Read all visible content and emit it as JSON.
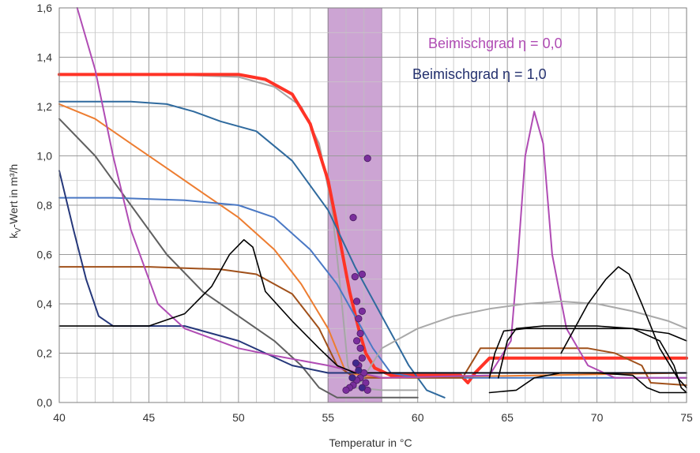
{
  "chart_data": {
    "type": "line",
    "xlabel": "Temperatur in °C",
    "ylabel_parts": [
      "k",
      "V",
      "-Wert  in  m³/h"
    ],
    "xlim": [
      40,
      75
    ],
    "ylim": [
      0,
      1.6
    ],
    "x_ticks": [
      "40",
      "45",
      "50",
      "55",
      "60",
      "65",
      "70",
      "75"
    ],
    "y_ticks": [
      "0,0",
      "0,2",
      "0,4",
      "0,6",
      "0,8",
      "1,0",
      "1,2",
      "1,4",
      "1,6"
    ],
    "grid": true,
    "band": {
      "x": [
        55,
        58
      ],
      "color": "#a25aaf"
    },
    "legend": [
      {
        "label": "Beimischgrad η = 0,0",
        "color": "#b04cb4"
      },
      {
        "label": "Beimischgrad η = 1,0",
        "color": "#23306e"
      }
    ],
    "series": [
      {
        "color": "#a6a6a6",
        "width": 2,
        "points": [
          [
            40,
            1.33
          ],
          [
            46,
            1.33
          ],
          [
            50,
            1.32
          ],
          [
            52,
            1.28
          ],
          [
            53.5,
            1.2
          ],
          [
            54.5,
            1.05
          ],
          [
            55.2,
            0.8
          ],
          [
            55.7,
            0.45
          ],
          [
            56.1,
            0.15
          ],
          [
            56.5,
            0.06
          ],
          [
            58,
            0.05
          ],
          [
            60,
            0.05
          ]
        ]
      },
      {
        "color": "#ff3326",
        "width": 4,
        "points": [
          [
            40,
            1.33
          ],
          [
            50,
            1.33
          ],
          [
            51.5,
            1.31
          ],
          [
            53,
            1.25
          ],
          [
            54,
            1.13
          ],
          [
            55,
            0.9
          ],
          [
            55.6,
            0.68
          ],
          [
            56.2,
            0.45
          ],
          [
            56.7,
            0.3
          ],
          [
            57.1,
            0.2
          ],
          [
            57.6,
            0.14
          ],
          [
            58.5,
            0.11
          ],
          [
            62.4,
            0.11
          ],
          [
            62.8,
            0.08
          ],
          [
            63.2,
            0.12
          ],
          [
            64,
            0.18
          ],
          [
            75,
            0.18
          ]
        ]
      },
      {
        "color": "#2f6a9e",
        "width": 2,
        "points": [
          [
            40,
            1.22
          ],
          [
            44,
            1.22
          ],
          [
            46,
            1.21
          ],
          [
            47.5,
            1.18
          ],
          [
            49,
            1.14
          ],
          [
            51,
            1.1
          ],
          [
            53,
            0.98
          ],
          [
            55,
            0.78
          ],
          [
            56.5,
            0.55
          ],
          [
            58,
            0.35
          ],
          [
            59.5,
            0.15
          ],
          [
            60.5,
            0.05
          ],
          [
            61.5,
            0.02
          ]
        ]
      },
      {
        "color": "#ed7d31",
        "width": 2,
        "points": [
          [
            40,
            1.21
          ],
          [
            42,
            1.15
          ],
          [
            44,
            1.05
          ],
          [
            46,
            0.95
          ],
          [
            48,
            0.85
          ],
          [
            50,
            0.75
          ],
          [
            52,
            0.62
          ],
          [
            53.5,
            0.48
          ],
          [
            55,
            0.3
          ],
          [
            56,
            0.12
          ],
          [
            58,
            0.1
          ],
          [
            75,
            0.12
          ]
        ]
      },
      {
        "color": "#606060",
        "width": 2,
        "points": [
          [
            40,
            1.15
          ],
          [
            42,
            1.0
          ],
          [
            44,
            0.8
          ],
          [
            46,
            0.6
          ],
          [
            48,
            0.45
          ],
          [
            50,
            0.35
          ],
          [
            52,
            0.25
          ],
          [
            53.5,
            0.15
          ],
          [
            54.5,
            0.06
          ],
          [
            55.5,
            0.02
          ],
          [
            60,
            0.02
          ]
        ]
      },
      {
        "color": "#4a78c4",
        "width": 2,
        "points": [
          [
            40,
            0.83
          ],
          [
            43,
            0.83
          ],
          [
            47,
            0.82
          ],
          [
            50,
            0.8
          ],
          [
            52,
            0.75
          ],
          [
            54,
            0.62
          ],
          [
            55.5,
            0.48
          ],
          [
            56.5,
            0.35
          ],
          [
            57.5,
            0.22
          ],
          [
            58.5,
            0.12
          ],
          [
            60,
            0.1
          ],
          [
            75,
            0.1
          ]
        ]
      },
      {
        "color": "#a0501a",
        "width": 2,
        "points": [
          [
            40,
            0.55
          ],
          [
            45,
            0.55
          ],
          [
            49,
            0.54
          ],
          [
            51,
            0.52
          ],
          [
            53,
            0.44
          ],
          [
            54.5,
            0.3
          ],
          [
            55.5,
            0.15
          ],
          [
            56.5,
            0.1
          ],
          [
            62.5,
            0.1
          ],
          [
            63.5,
            0.22
          ],
          [
            69.5,
            0.22
          ],
          [
            71,
            0.2
          ],
          [
            72.5,
            0.15
          ],
          [
            73,
            0.08
          ],
          [
            75,
            0.07
          ]
        ]
      },
      {
        "color": "#25377a",
        "width": 2,
        "points": [
          [
            40,
            0.94
          ],
          [
            40.8,
            0.7
          ],
          [
            41.5,
            0.5
          ],
          [
            42.2,
            0.35
          ],
          [
            43,
            0.31
          ],
          [
            47,
            0.31
          ],
          [
            50,
            0.25
          ],
          [
            53,
            0.15
          ],
          [
            55,
            0.12
          ],
          [
            75,
            0.12
          ]
        ]
      },
      {
        "color": "#b04cb4",
        "width": 2,
        "points": [
          [
            41,
            1.6
          ],
          [
            42,
            1.35
          ],
          [
            43,
            1.0
          ],
          [
            44,
            0.7
          ],
          [
            45.5,
            0.4
          ],
          [
            47,
            0.3
          ],
          [
            50,
            0.22
          ],
          [
            52,
            0.19
          ],
          [
            55,
            0.15
          ],
          [
            58,
            0.1
          ],
          [
            64,
            0.11
          ],
          [
            65.2,
            0.25
          ],
          [
            65.6,
            0.6
          ],
          [
            66,
            1.0
          ],
          [
            66.5,
            1.18
          ],
          [
            67,
            1.05
          ],
          [
            67.5,
            0.6
          ],
          [
            68.3,
            0.3
          ],
          [
            69.5,
            0.15
          ],
          [
            71,
            0.1
          ],
          [
            75,
            0.1
          ]
        ]
      },
      {
        "color": "#a9a9a9",
        "width": 2,
        "points": [
          [
            56.8,
            0.08
          ],
          [
            58,
            0.22
          ],
          [
            60,
            0.3
          ],
          [
            62,
            0.35
          ],
          [
            64,
            0.38
          ],
          [
            66,
            0.4
          ],
          [
            68,
            0.41
          ],
          [
            70,
            0.4
          ],
          [
            72,
            0.37
          ],
          [
            74,
            0.33
          ],
          [
            75,
            0.3
          ]
        ]
      },
      {
        "color": "#000000",
        "width": 1.6,
        "points": [
          [
            40,
            0.31
          ],
          [
            45,
            0.31
          ],
          [
            47,
            0.36
          ],
          [
            48.5,
            0.47
          ],
          [
            49.5,
            0.6
          ],
          [
            50.3,
            0.66
          ],
          [
            50.8,
            0.63
          ],
          [
            51.5,
            0.45
          ],
          [
            53,
            0.33
          ],
          [
            54.5,
            0.22
          ],
          [
            55.5,
            0.15
          ],
          [
            56.5,
            0.12
          ],
          [
            75,
            0.12
          ]
        ]
      },
      {
        "color": "#000000",
        "width": 1.6,
        "points": [
          [
            64.5,
            0.1
          ],
          [
            65,
            0.25
          ],
          [
            65.5,
            0.3
          ],
          [
            67,
            0.31
          ],
          [
            70,
            0.31
          ],
          [
            72,
            0.3
          ],
          [
            73.5,
            0.25
          ],
          [
            74.3,
            0.15
          ],
          [
            74.7,
            0.06
          ],
          [
            75,
            0.04
          ]
        ]
      },
      {
        "color": "#000000",
        "width": 1.6,
        "points": [
          [
            64,
            0.1
          ],
          [
            64.3,
            0.2
          ],
          [
            64.8,
            0.29
          ],
          [
            66,
            0.3
          ],
          [
            72,
            0.3
          ],
          [
            74,
            0.28
          ],
          [
            75,
            0.25
          ]
        ]
      },
      {
        "color": "#000000",
        "width": 1.6,
        "points": [
          [
            68,
            0.2
          ],
          [
            69.5,
            0.4
          ],
          [
            70.5,
            0.5
          ],
          [
            71.2,
            0.55
          ],
          [
            71.8,
            0.52
          ],
          [
            72.5,
            0.4
          ],
          [
            73.5,
            0.22
          ],
          [
            74.5,
            0.1
          ],
          [
            75,
            0.06
          ]
        ]
      },
      {
        "color": "#000000",
        "width": 1.6,
        "points": [
          [
            64,
            0.04
          ],
          [
            65.5,
            0.05
          ],
          [
            66.5,
            0.1
          ],
          [
            68,
            0.12
          ],
          [
            70,
            0.12
          ],
          [
            72,
            0.11
          ],
          [
            72.8,
            0.06
          ],
          [
            73.5,
            0.04
          ],
          [
            75,
            0.04
          ]
        ]
      }
    ],
    "markers": [
      {
        "color": "#7a2e9c",
        "points": [
          [
            57.2,
            0.99
          ],
          [
            56.4,
            0.75
          ],
          [
            56.9,
            0.52
          ],
          [
            56.5,
            0.51
          ],
          [
            56.6,
            0.41
          ],
          [
            56.9,
            0.37
          ],
          [
            56.7,
            0.34
          ],
          [
            56.8,
            0.28
          ],
          [
            56.6,
            0.25
          ],
          [
            56.8,
            0.22
          ],
          [
            56.9,
            0.18
          ],
          [
            56.7,
            0.15
          ],
          [
            57.0,
            0.12
          ],
          [
            56.8,
            0.1
          ],
          [
            56.6,
            0.09
          ],
          [
            57.1,
            0.08
          ],
          [
            56.4,
            0.07
          ],
          [
            56.2,
            0.06
          ],
          [
            56.0,
            0.05
          ],
          [
            57.2,
            0.05
          ]
        ]
      },
      {
        "color": "#3e2a8c",
        "points": [
          [
            56.55,
            0.16
          ],
          [
            56.7,
            0.13
          ],
          [
            56.35,
            0.1
          ],
          [
            56.9,
            0.06
          ]
        ]
      }
    ]
  }
}
